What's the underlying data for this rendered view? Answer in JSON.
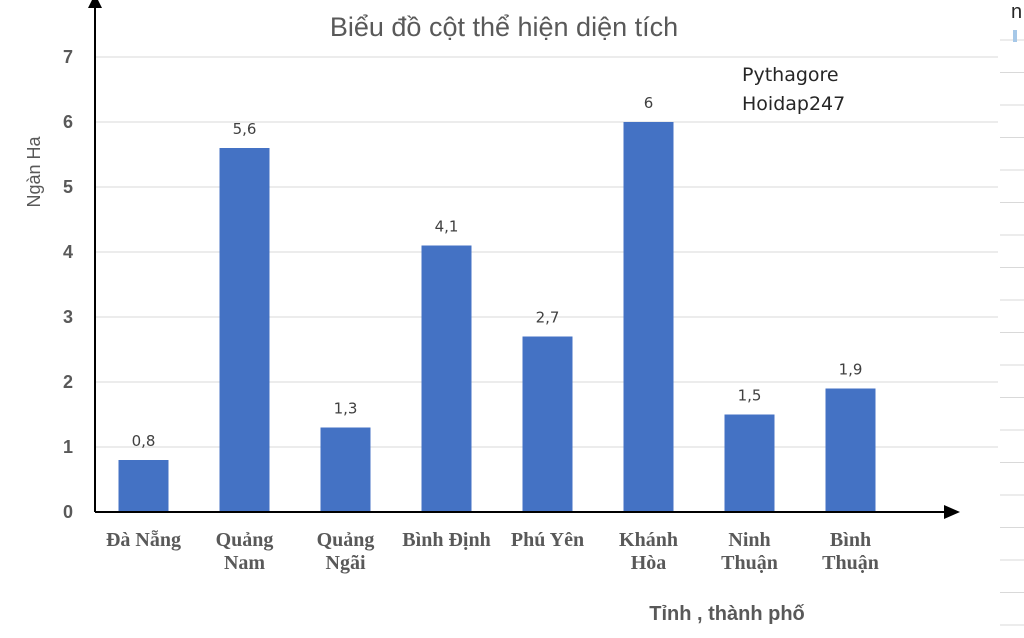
{
  "chart_data": {
    "type": "bar",
    "title": "Biểu đồ cột thể hiện diện tích",
    "ylabel": "Ngàn Ha",
    "xlabel": "Tỉnh , thành phố",
    "categories": [
      [
        "Đà Nẵng"
      ],
      [
        "Quảng",
        "Nam"
      ],
      [
        "Quảng",
        "Ngãi"
      ],
      [
        "Bình Định"
      ],
      [
        "Phú Yên"
      ],
      [
        "Khánh",
        "Hòa"
      ],
      [
        "Ninh",
        "Thuận"
      ],
      [
        "Bình",
        "Thuận"
      ]
    ],
    "values": [
      0.8,
      5.6,
      1.3,
      4.1,
      2.7,
      6,
      1.5,
      1.9
    ],
    "data_labels": [
      "0,8",
      "5,6",
      "1,3",
      "4,1",
      "2,7",
      "6",
      "1,5",
      "1,9"
    ],
    "yticks": [
      "0",
      "1",
      "2",
      "3",
      "4",
      "5",
      "6",
      "7"
    ],
    "ylim": [
      0,
      7
    ],
    "grid": true,
    "bar_color": "#4472C4",
    "annotations": [
      "Pythagore",
      "Hoidap247"
    ]
  },
  "edge_text": "n"
}
